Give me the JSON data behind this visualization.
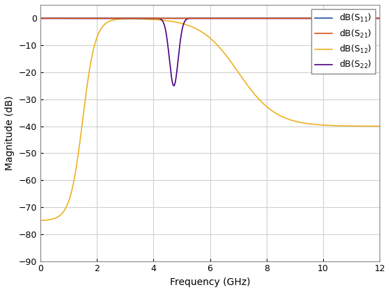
{
  "xlabel": "Frequency (GHz)",
  "ylabel": "Magnitude (dB)",
  "xlim": [
    0,
    12
  ],
  "ylim": [
    -90,
    5
  ],
  "yticks": [
    0,
    -10,
    -20,
    -30,
    -40,
    -50,
    -60,
    -70,
    -80,
    -90
  ],
  "xticks": [
    0,
    2,
    4,
    6,
    8,
    10,
    12
  ],
  "legend_labels": [
    "dB(S_{11})",
    "dB(S_{21})",
    "dB(S_{12})",
    "dB(S_{22})"
  ],
  "color_s11": "#1f4e9c",
  "color_s21": "#d95319",
  "color_s12": "#edb120",
  "color_s22": "#4b0082",
  "background_color": "#ffffff",
  "grid_color": "#d0d0d0",
  "figsize": [
    5.6,
    4.2
  ],
  "dpi": 100,
  "linewidth": 1.2
}
